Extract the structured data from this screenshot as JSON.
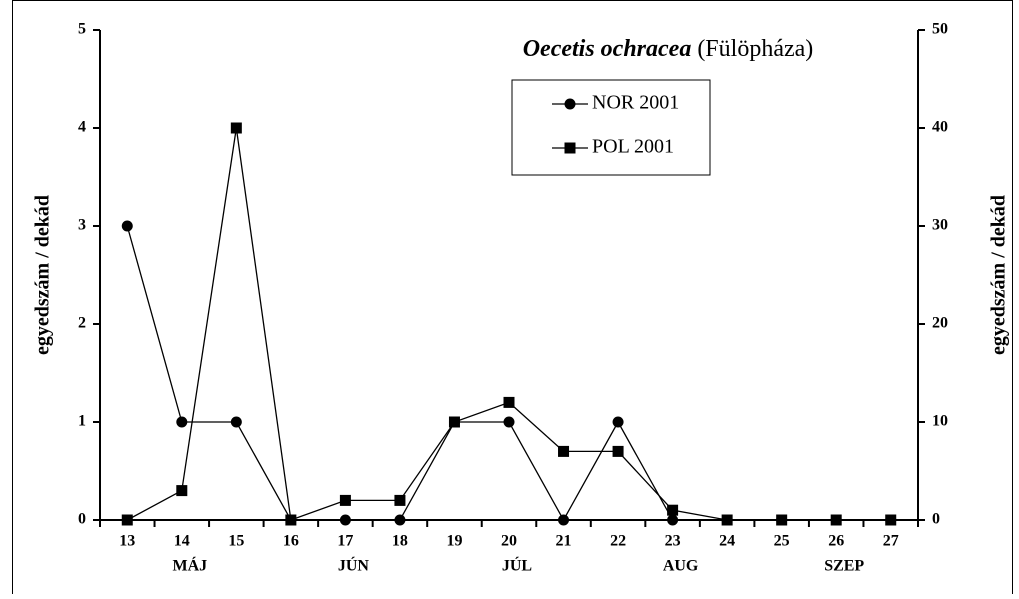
{
  "chart_data": {
    "type": "line",
    "title": "Oecetis ochracea",
    "subtitle": "(Fülöpháza)",
    "categories": [
      "13",
      "14",
      "15",
      "16",
      "17",
      "18",
      "19",
      "20",
      "21",
      "22",
      "23",
      "24",
      "25",
      "26",
      "27"
    ],
    "months": [
      null,
      "MÁJ",
      null,
      null,
      "JÚN",
      null,
      null,
      "JÚL",
      null,
      null,
      "AUG",
      null,
      null,
      "SZEP",
      null
    ],
    "y_label": "egyedszám / dekád",
    "y2_label": "egyedszám / dekád",
    "ylim": [
      0,
      5
    ],
    "yticks": [
      0,
      1,
      2,
      3,
      4,
      5
    ],
    "y2lim": [
      0,
      50
    ],
    "y2ticks": [
      0,
      10,
      20,
      30,
      40,
      50
    ],
    "legend": "top-right",
    "series": [
      {
        "name": "NOR 2001",
        "color": "#000000",
        "marker": "circle",
        "values": [
          3,
          1,
          1,
          0,
          0,
          0,
          1,
          1,
          0,
          1,
          0,
          0,
          0,
          0,
          0
        ]
      },
      {
        "name": "POL 2001",
        "color": "#000000",
        "marker": "square",
        "axis": "y2",
        "values": [
          0,
          3,
          40,
          0,
          2,
          2,
          10,
          12,
          7,
          7,
          1,
          0,
          0,
          0,
          0
        ]
      }
    ]
  }
}
